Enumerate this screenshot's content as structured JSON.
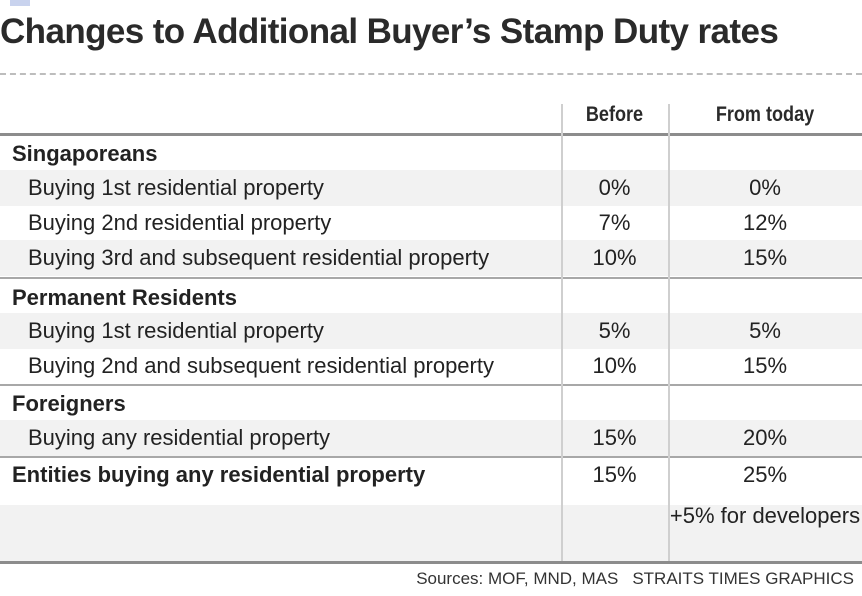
{
  "title": "Changes to Additional Buyer’s Stamp Duty rates",
  "columns": {
    "before": "Before",
    "today": "From today"
  },
  "groups": {
    "singaporeans": {
      "label": "Singaporeans",
      "rows": [
        {
          "label": "Buying 1st residential property",
          "before": "0%",
          "today": "0%"
        },
        {
          "label": "Buying 2nd residential property",
          "before": "7%",
          "today": "12%"
        },
        {
          "label": "Buying 3rd and subsequent residential property",
          "before": "10%",
          "today": "15%"
        }
      ]
    },
    "pr": {
      "label": "Permanent Residents",
      "rows": [
        {
          "label": "Buying 1st residential property",
          "before": "5%",
          "today": "5%"
        },
        {
          "label": "Buying 2nd and subsequent residential property",
          "before": "10%",
          "today": "15%"
        }
      ]
    },
    "foreigners": {
      "label": "Foreigners",
      "rows": [
        {
          "label": "Buying any residential property",
          "before": "15%",
          "today": "20%"
        }
      ]
    },
    "entities": {
      "label": "Entities buying any residential property",
      "before": "15%",
      "today": "25%",
      "note": "+5% for developers"
    }
  },
  "footer": {
    "sources": "Sources: MOF, MND, MAS",
    "credit": "STRAITS TIMES GRAPHICS"
  },
  "chart_data": {
    "type": "table",
    "title": "Changes to Additional Buyer’s Stamp Duty rates",
    "columns": [
      "",
      "Before",
      "From today"
    ],
    "rows": [
      [
        "Singaporeans",
        "",
        ""
      ],
      [
        "Buying 1st residential property",
        "0%",
        "0%"
      ],
      [
        "Buying 2nd residential property",
        "7%",
        "12%"
      ],
      [
        "Buying 3rd and subsequent residential property",
        "10%",
        "15%"
      ],
      [
        "Permanent Residents",
        "",
        ""
      ],
      [
        "Buying 1st residential property",
        "5%",
        "5%"
      ],
      [
        "Buying 2nd and subsequent residential property",
        "10%",
        "15%"
      ],
      [
        "Foreigners",
        "",
        ""
      ],
      [
        "Buying any residential property",
        "15%",
        "20%"
      ],
      [
        "Entities buying any residential property",
        "15%",
        "25%"
      ],
      [
        "",
        "",
        "+5% for developers"
      ]
    ]
  }
}
